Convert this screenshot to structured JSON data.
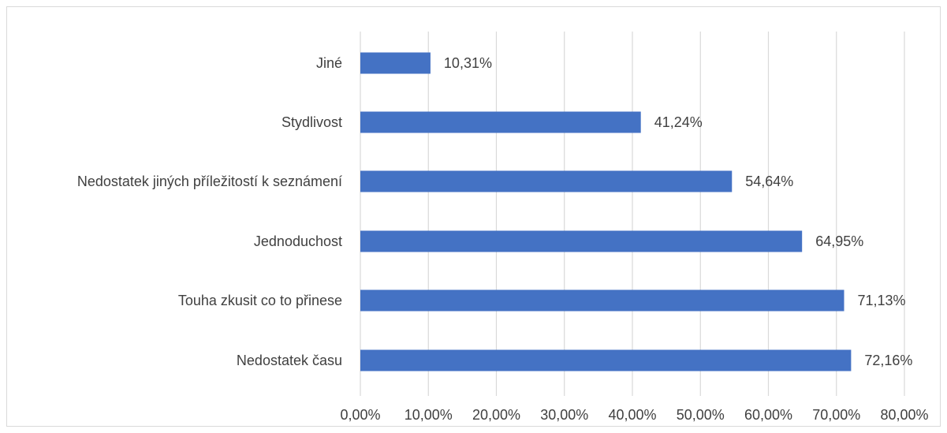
{
  "chart_data": {
    "type": "bar",
    "orientation": "horizontal",
    "categories": [
      "Jiné",
      "Stydlivost",
      "Nedostatek jiných příležitostí k seznámení",
      "Jednoduchost",
      "Touha zkusit co to přinese",
      "Nedostatek času"
    ],
    "values": [
      10.31,
      41.24,
      54.64,
      64.95,
      71.13,
      72.16
    ],
    "data_labels": [
      "10,31%",
      "41,24%",
      "54,64%",
      "64,95%",
      "71,13%",
      "72,16%"
    ],
    "xlim": [
      0,
      80
    ],
    "xticks": [
      0,
      10,
      20,
      30,
      40,
      50,
      60,
      70,
      80
    ],
    "xtick_labels": [
      "0,00%",
      "10,00%",
      "20,00%",
      "30,00%",
      "40,00%",
      "50,00%",
      "60,00%",
      "70,00%",
      "80,00%"
    ],
    "grid": true,
    "legend": "none",
    "bar_color": "#4472c4",
    "grid_color": "#d9d9d9",
    "text_color": "#404040"
  }
}
